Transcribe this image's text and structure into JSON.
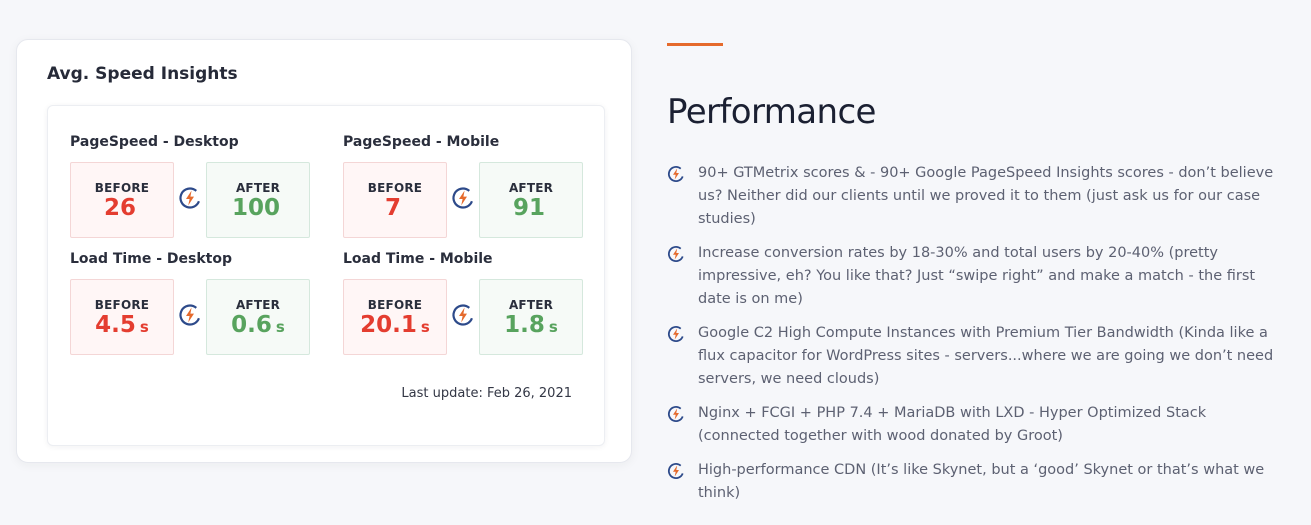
{
  "card": {
    "title": "Avg. Speed Insights",
    "groups": [
      {
        "label": "PageSpeed - Desktop",
        "before_label": "BEFORE",
        "before_value": "26",
        "before_unit": "",
        "after_label": "AFTER",
        "after_value": "100",
        "after_unit": ""
      },
      {
        "label": "PageSpeed - Mobile",
        "before_label": "BEFORE",
        "before_value": "7",
        "before_unit": "",
        "after_label": "AFTER",
        "after_value": "91",
        "after_unit": ""
      },
      {
        "label": "Load Time - Desktop",
        "before_label": "BEFORE",
        "before_value": "4.5",
        "before_unit": "s",
        "after_label": "AFTER",
        "after_value": "0.6",
        "after_unit": "s"
      },
      {
        "label": "Load Time - Mobile",
        "before_label": "BEFORE",
        "before_value": "20.1",
        "before_unit": "s",
        "after_label": "AFTER",
        "after_value": "1.8",
        "after_unit": "s"
      }
    ],
    "last_update": "Last update: Feb 26, 2021"
  },
  "performance": {
    "title": "Performance",
    "features": [
      "90+ GTMetrix scores & - 90+ Google PageSpeed Insights scores - don’t believe us? Neither did our clients until we proved it to them (just ask us for our case studies)",
      "Increase conversion rates by 18-30% and total users by 20-40% (pretty impressive, eh? You like that? Just “swipe right” and make a match - the first date is on me)",
      "Google C2 High Compute Instances with Premium Tier Bandwidth (Kinda like a flux capacitor for WordPress sites - servers...where we are going we don’t need servers, we need clouds)",
      "Nginx + FCGI + PHP 7.4 + MariaDB with LXD - Hyper Optimized Stack (connected together with wood donated by Groot)",
      "High-performance CDN (It’s like Skynet, but a ‘good’ Skynet or that’s what we think)"
    ]
  },
  "icons": {
    "compare": "lightning-bolt-circle-icon",
    "feature_bullet": "lightning-bolt-circle-icon"
  },
  "colors": {
    "before": "#e43d30",
    "after": "#58a35e",
    "accent": "#e56a2c",
    "icon_ring": "#2d4a8a",
    "icon_bolt": "#e56a2c"
  }
}
